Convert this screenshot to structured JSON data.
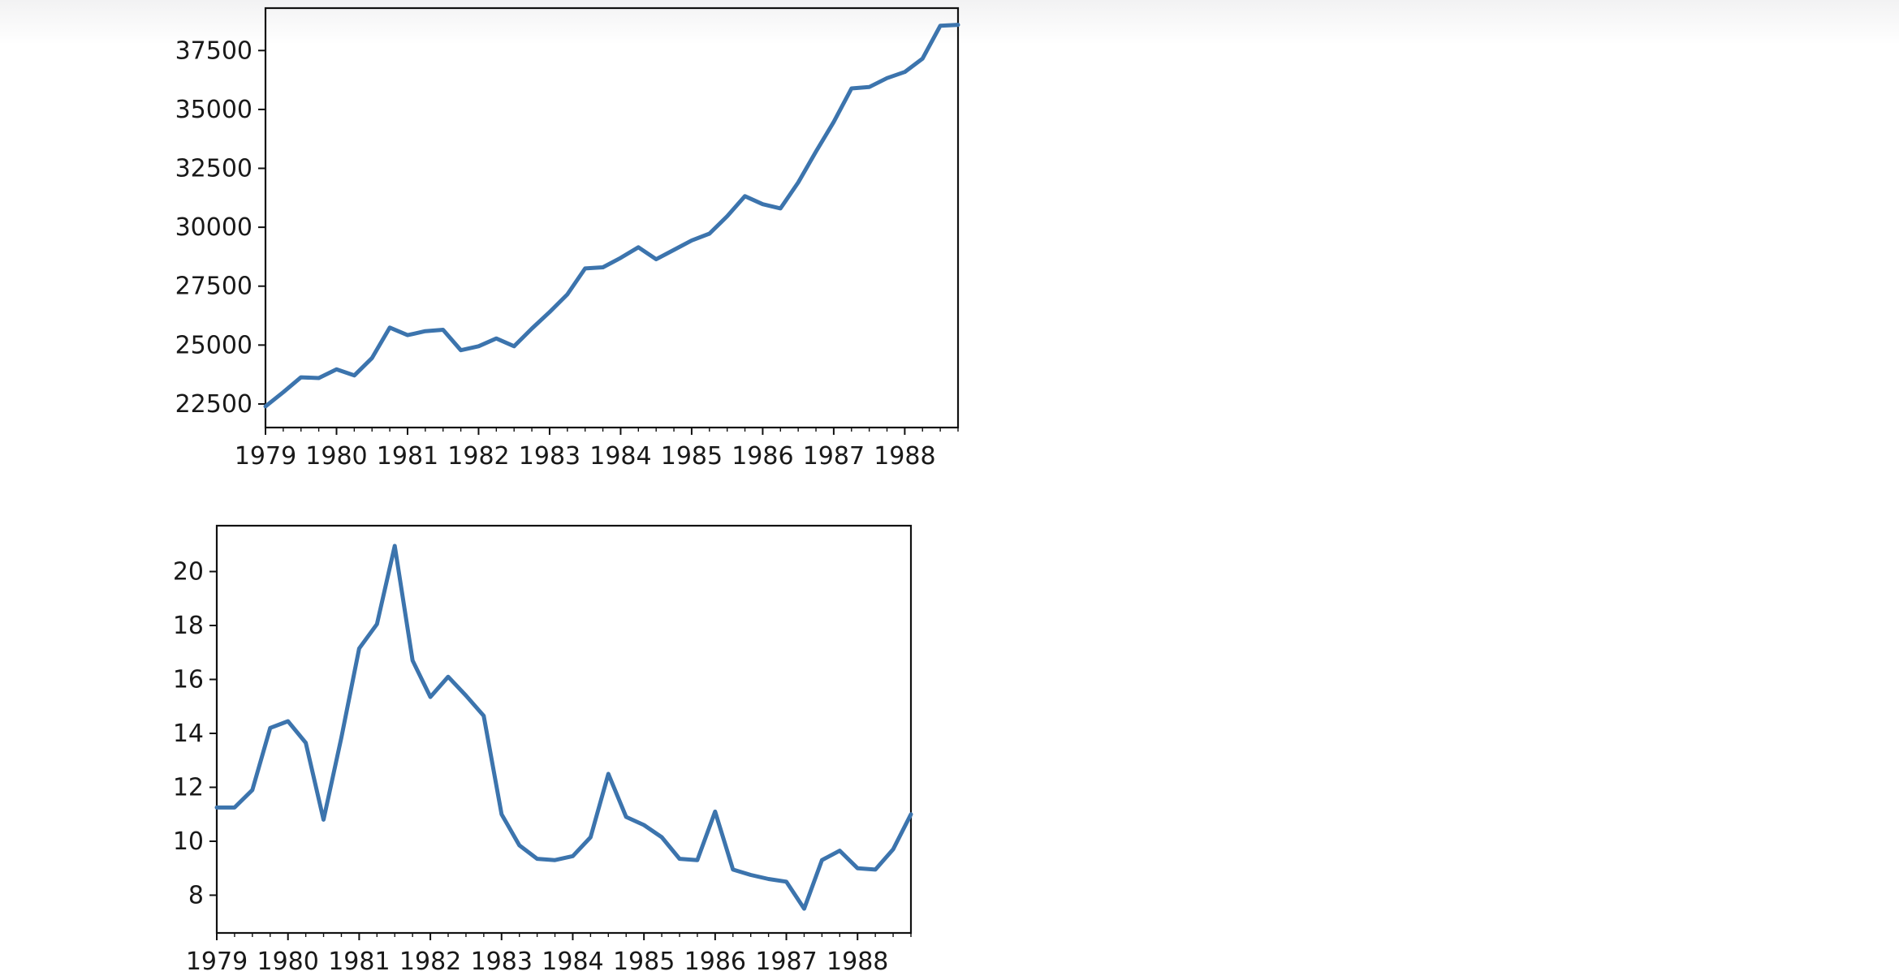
{
  "page": {
    "background": "#ffffff",
    "description": "Notebook-style output of two stacked matplotlib line charts of quarterly time series, 1979-1988"
  },
  "colors": {
    "line": "#3c74ad",
    "spine": "#111111",
    "tick_text": "#191919",
    "background": "#ffffff"
  },
  "chart_data": [
    {
      "type": "line",
      "title": "",
      "xlabel": "",
      "ylabel": "",
      "grid": false,
      "legend_position": null,
      "frequency": "quarterly",
      "line_color": "#3c74ad",
      "categories": [
        "1979Q1",
        "1979Q2",
        "1979Q3",
        "1979Q4",
        "1980Q1",
        "1980Q2",
        "1980Q3",
        "1980Q4",
        "1981Q1",
        "1981Q2",
        "1981Q3",
        "1981Q4",
        "1982Q1",
        "1982Q2",
        "1982Q3",
        "1982Q4",
        "1983Q1",
        "1983Q2",
        "1983Q3",
        "1983Q4",
        "1984Q1",
        "1984Q2",
        "1984Q3",
        "1984Q4",
        "1985Q1",
        "1985Q2",
        "1985Q3",
        "1985Q4",
        "1986Q1",
        "1986Q2",
        "1986Q3",
        "1986Q4",
        "1987Q1",
        "1987Q2",
        "1987Q3",
        "1987Q4",
        "1988Q1",
        "1988Q2",
        "1988Q3",
        "1988Q4"
      ],
      "values": [
        22400,
        23000,
        23630,
        23600,
        23970,
        23710,
        24450,
        25740,
        25420,
        25590,
        25650,
        24780,
        24950,
        25280,
        24950,
        25700,
        26400,
        27150,
        28250,
        28300,
        28700,
        29150,
        28640,
        29040,
        29440,
        29730,
        30470,
        31320,
        30980,
        30800,
        31900,
        33210,
        34470,
        35890,
        35950,
        36330,
        36590,
        37160,
        38550,
        38590
      ],
      "ylim": [
        21500,
        39300
      ],
      "yticks": [
        22500,
        25000,
        27500,
        30000,
        32500,
        35000,
        37500
      ],
      "ytick_labels": [
        "22500",
        "25000",
        "27500",
        "30000",
        "32500",
        "35000",
        "37500"
      ],
      "xtick_labels": [
        "1979",
        "1980",
        "1981",
        "1982",
        "1983",
        "1984",
        "1985",
        "1986",
        "1987",
        "1988"
      ],
      "xticks_every_n_points": 4,
      "minor_ticks": "every quarter"
    },
    {
      "type": "line",
      "title": "",
      "xlabel": "",
      "ylabel": "",
      "grid": false,
      "legend_position": null,
      "frequency": "quarterly",
      "line_color": "#3c74ad",
      "categories": [
        "1979Q1",
        "1979Q2",
        "1979Q3",
        "1979Q4",
        "1980Q1",
        "1980Q2",
        "1980Q3",
        "1980Q4",
        "1981Q1",
        "1981Q2",
        "1981Q3",
        "1981Q4",
        "1982Q1",
        "1982Q2",
        "1982Q3",
        "1982Q4",
        "1983Q1",
        "1983Q2",
        "1983Q3",
        "1983Q4",
        "1984Q1",
        "1984Q2",
        "1984Q3",
        "1984Q4",
        "1985Q1",
        "1985Q2",
        "1985Q3",
        "1985Q4",
        "1986Q1",
        "1986Q2",
        "1986Q3",
        "1986Q4",
        "1987Q1",
        "1987Q2",
        "1987Q3",
        "1987Q4",
        "1988Q1",
        "1988Q2",
        "1988Q3",
        "1988Q4"
      ],
      "values": [
        11.25,
        11.25,
        11.9,
        14.2,
        14.45,
        13.65,
        10.8,
        13.85,
        17.15,
        18.05,
        20.95,
        16.7,
        15.35,
        16.1,
        15.4,
        14.65,
        11.0,
        9.85,
        9.35,
        9.3,
        9.45,
        10.15,
        12.5,
        10.9,
        10.6,
        10.15,
        9.35,
        9.3,
        11.1,
        8.95,
        8.75,
        8.6,
        8.5,
        7.5,
        9.3,
        9.65,
        9.0,
        8.95,
        9.7,
        11.0
      ],
      "ylim": [
        6.6,
        21.7
      ],
      "yticks": [
        8,
        10,
        12,
        14,
        16,
        18,
        20
      ],
      "ytick_labels": [
        "8",
        "10",
        "12",
        "14",
        "16",
        "18",
        "20"
      ],
      "xtick_labels": [
        "1979",
        "1980",
        "1981",
        "1982",
        "1983",
        "1984",
        "1985",
        "1986",
        "1987",
        "1988"
      ],
      "xticks_every_n_points": 4,
      "minor_ticks": "every quarter"
    }
  ]
}
